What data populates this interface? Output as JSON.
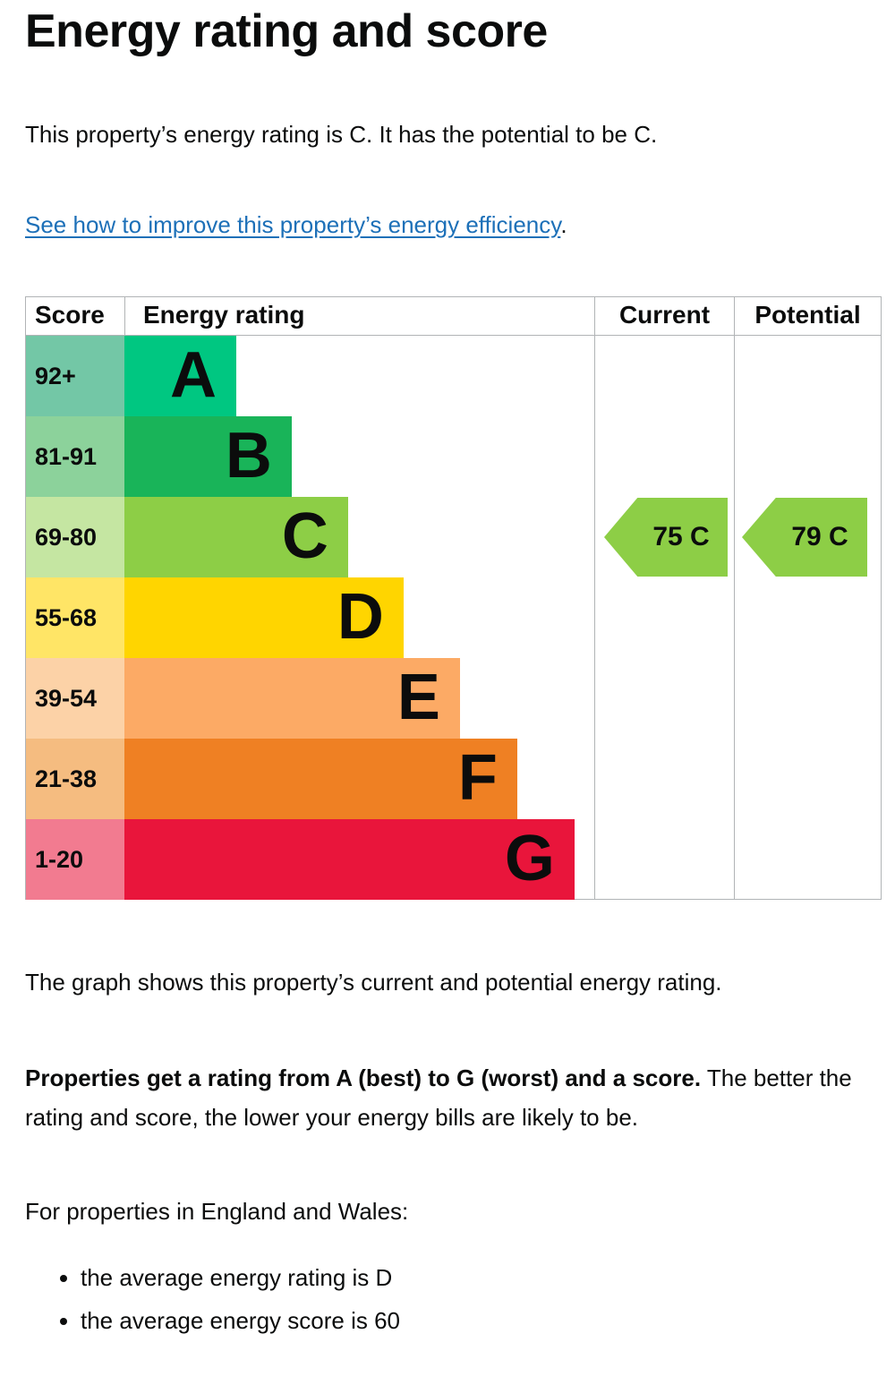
{
  "page": {
    "title": "Energy rating and score",
    "intro": "This property’s energy rating is C. It has the potential to be C.",
    "link_text": "See how to improve this property’s energy efficiency",
    "link_suffix": ".",
    "caption": "The graph shows this property’s current and potential energy rating.",
    "explain_bold": "Properties get a rating from A (best) to G (worst) and a score.",
    "explain_rest": " The better the rating and score, the lower your energy bills are likely to be.",
    "regional_heading": "For properties in England and Wales:",
    "bullets": [
      "the average energy rating is D",
      "the average energy score is 60"
    ]
  },
  "chart_data": {
    "type": "bar",
    "title": "Energy rating and score",
    "columns": [
      "Score",
      "Energy rating",
      "Current",
      "Potential"
    ],
    "legend_position": "none",
    "grid": false,
    "bands": [
      {
        "range": "92+",
        "letter": "A",
        "bar_color": "#00c781",
        "score_tint": "#73c7a6",
        "bar_width": "23.8%"
      },
      {
        "range": "81-91",
        "letter": "B",
        "bar_color": "#19b459",
        "score_tint": "#8cd29b",
        "bar_width": "35.6%"
      },
      {
        "range": "69-80",
        "letter": "C",
        "bar_color": "#8dce46",
        "score_tint": "#c5e6a2",
        "bar_width": "47.6%"
      },
      {
        "range": "55-68",
        "letter": "D",
        "bar_color": "#ffd500",
        "score_tint": "#ffe566",
        "bar_width": "59.4%"
      },
      {
        "range": "39-54",
        "letter": "E",
        "bar_color": "#fcaa65",
        "score_tint": "#fcd2a7",
        "bar_width": "71.4%"
      },
      {
        "range": "21-38",
        "letter": "F",
        "bar_color": "#ef8023",
        "score_tint": "#f5bc80",
        "bar_width": "83.6%"
      },
      {
        "range": "1-20",
        "letter": "G",
        "bar_color": "#e9153b",
        "score_tint": "#f27b90",
        "bar_width": "95.8%"
      }
    ],
    "current": {
      "label": "75 C",
      "value": 75,
      "band": "C",
      "band_index": 2,
      "arrow_color": "#8dce46"
    },
    "potential": {
      "label": "79 C",
      "value": 79,
      "band": "C",
      "band_index": 2,
      "arrow_color": "#8dce46"
    }
  }
}
